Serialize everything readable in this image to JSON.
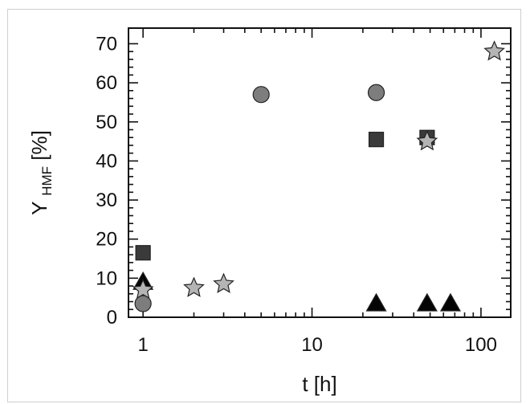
{
  "chart_data": {
    "type": "scatter",
    "title": "",
    "xlabel": "t [h]",
    "ylabel": {
      "main": "Y",
      "subscript": "HMF",
      "unit": " [%]"
    },
    "x_scale": "log",
    "xlim": [
      0.82,
      150
    ],
    "ylim": [
      0,
      74
    ],
    "x_ticks": [
      1,
      10,
      100
    ],
    "x_tick_labels": [
      "1",
      "10",
      "100"
    ],
    "y_ticks": [
      0,
      10,
      20,
      30,
      40,
      50,
      60,
      70
    ],
    "y_tick_labels": [
      "0",
      "10",
      "20",
      "30",
      "40",
      "50",
      "60",
      "70"
    ],
    "grid": false,
    "series": [
      {
        "marker": "square",
        "color": "#3a3a3a",
        "points": [
          {
            "x": 1,
            "y": 16.5
          },
          {
            "x": 24,
            "y": 45.5
          },
          {
            "x": 48,
            "y": 46
          }
        ]
      },
      {
        "marker": "circle",
        "color": "#7d7d7d",
        "points": [
          {
            "x": 1,
            "y": 3.5
          },
          {
            "x": 5,
            "y": 57
          },
          {
            "x": 24,
            "y": 57.5
          }
        ]
      },
      {
        "marker": "triangle",
        "color": "#050505",
        "points": [
          {
            "x": 1,
            "y": 9
          },
          {
            "x": 24,
            "y": 3.5
          },
          {
            "x": 48,
            "y": 3.5
          },
          {
            "x": 66,
            "y": 3.5
          }
        ]
      },
      {
        "marker": "star",
        "color": "#b4b4b4",
        "points": [
          {
            "x": 1,
            "y": 7
          },
          {
            "x": 2,
            "y": 7.5
          },
          {
            "x": 3,
            "y": 8.5
          },
          {
            "x": 48,
            "y": 45
          },
          {
            "x": 120,
            "y": 68
          }
        ]
      }
    ]
  }
}
